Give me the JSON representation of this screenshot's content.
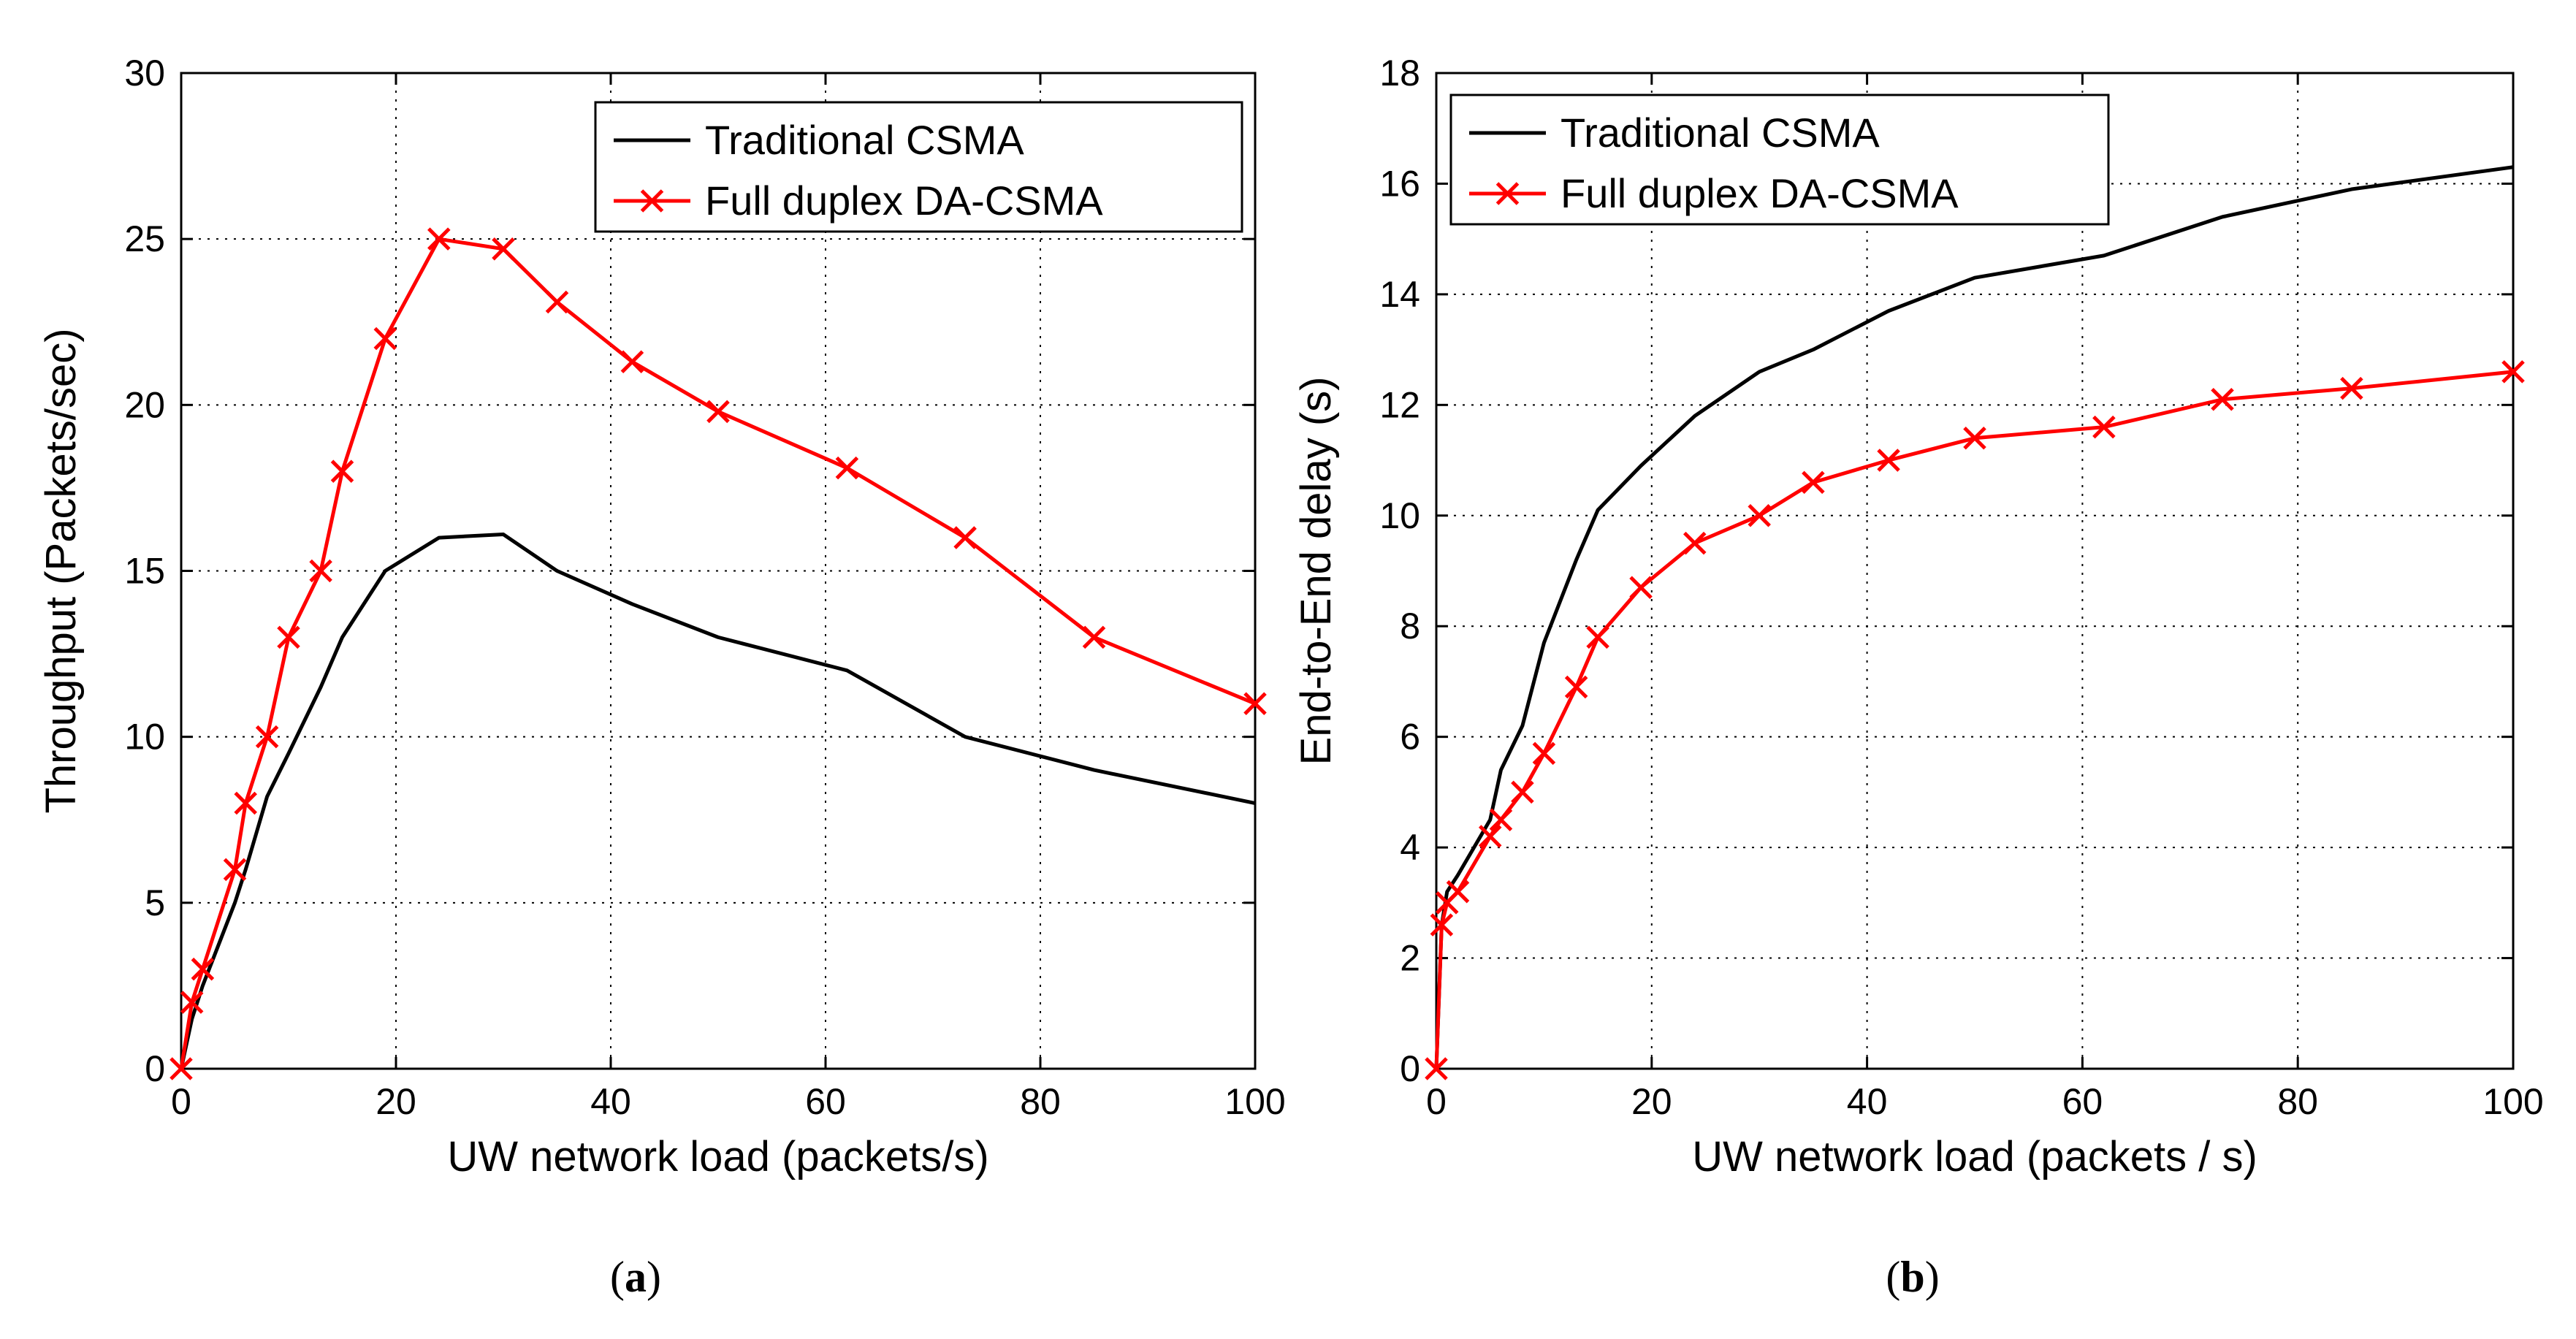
{
  "chart_data": [
    {
      "type": "line",
      "panel": "a",
      "caption": "a",
      "xlabel": "UW network load (packets/s)",
      "ylabel": "Throughput (Packets/sec)",
      "xlim": [
        0,
        100
      ],
      "ylim": [
        0,
        30
      ],
      "xticks": [
        0,
        20,
        40,
        60,
        80,
        100
      ],
      "yticks": [
        0,
        5,
        10,
        15,
        20,
        25,
        30
      ],
      "grid": true,
      "legend_position": "top-right",
      "series": [
        {
          "name": "Traditional CSMA",
          "color": "#000000",
          "marker": "none",
          "x": [
            0,
            1,
            2,
            5,
            6,
            8,
            10,
            13,
            15,
            19,
            24,
            30,
            35,
            42,
            50,
            62,
            73,
            85,
            100
          ],
          "y": [
            0,
            1.5,
            2.5,
            5,
            6,
            8.2,
            9.5,
            11.5,
            13,
            15,
            16,
            16.1,
            15,
            14,
            13,
            12,
            10,
            9,
            8
          ]
        },
        {
          "name": "Full duplex DA-CSMA",
          "color": "#ff0000",
          "marker": "x",
          "x": [
            0,
            1,
            2,
            5,
            6,
            8,
            10,
            13,
            15,
            19,
            24,
            30,
            35,
            42,
            50,
            62,
            73,
            85,
            100
          ],
          "y": [
            0,
            2,
            3,
            6,
            8,
            10,
            13,
            15,
            18,
            22,
            25,
            24.7,
            23.1,
            21.3,
            19.8,
            18.1,
            16,
            13,
            11
          ]
        }
      ]
    },
    {
      "type": "line",
      "panel": "b",
      "caption": "b",
      "xlabel": "UW network load (packets / s)",
      "ylabel": "End-to-End delay (s)",
      "xlim": [
        0,
        100
      ],
      "ylim": [
        0,
        18
      ],
      "xticks": [
        0,
        20,
        40,
        60,
        80,
        100
      ],
      "yticks": [
        0,
        2,
        4,
        6,
        8,
        10,
        12,
        14,
        16,
        18
      ],
      "grid": true,
      "legend_position": "top-left",
      "series": [
        {
          "name": "Traditional CSMA",
          "color": "#000000",
          "marker": "none",
          "x": [
            0,
            0.5,
            1,
            2,
            5,
            6,
            8,
            10,
            13,
            15,
            19,
            24,
            30,
            35,
            42,
            50,
            62,
            73,
            85,
            100
          ],
          "y": [
            0,
            2.6,
            3.2,
            3.5,
            4.5,
            5.4,
            6.2,
            7.7,
            9.2,
            10.1,
            10.9,
            11.8,
            12.6,
            13.0,
            13.7,
            14.3,
            14.7,
            15.4,
            15.9,
            16.3
          ]
        },
        {
          "name": "Full duplex DA-CSMA",
          "color": "#ff0000",
          "marker": "x",
          "x": [
            0,
            0.5,
            1,
            2,
            5,
            6,
            8,
            10,
            13,
            15,
            19,
            24,
            30,
            35,
            42,
            50,
            62,
            73,
            85,
            100
          ],
          "y": [
            0,
            2.6,
            3.0,
            3.2,
            4.2,
            4.5,
            5.0,
            5.7,
            6.9,
            7.8,
            8.7,
            9.5,
            10.0,
            10.6,
            11.0,
            11.4,
            11.6,
            12.1,
            12.3,
            12.6
          ]
        }
      ]
    }
  ]
}
